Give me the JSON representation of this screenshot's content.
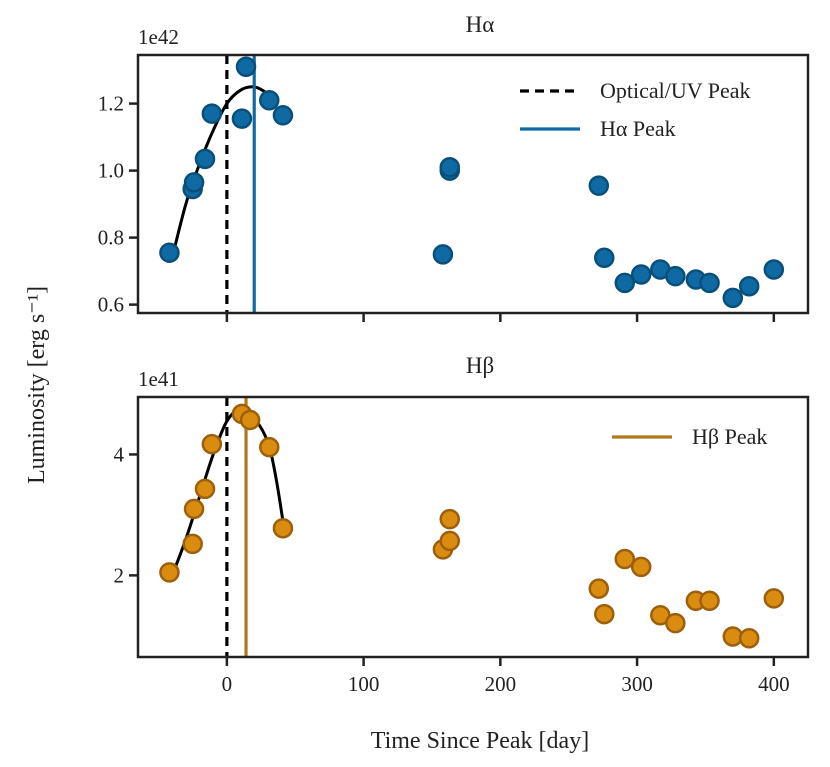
{
  "chart_data": [
    {
      "type": "scatter",
      "title": "Hα",
      "offset_text": "1e42",
      "xlabel": "Time Since Peak [day]",
      "ylabel": "Luminosity [erg s⁻¹]",
      "xlim": [
        -65,
        425
      ],
      "ylim": [
        0.575,
        1.345
      ],
      "yticks": [
        0.6,
        0.8,
        1.0,
        1.2
      ],
      "ytick_labels": [
        "0.6",
        "0.8",
        "1.0",
        "1.2"
      ],
      "xticks": [
        0,
        100,
        200,
        300,
        400
      ],
      "show_xtick_labels": false,
      "color": "#0f6aa3",
      "edge_color": "#0a4f7a",
      "points": {
        "x": [
          -42,
          -25,
          -24,
          -16,
          -11,
          11,
          14,
          31,
          41,
          158,
          163,
          163,
          272,
          276,
          291,
          303,
          317,
          328,
          343,
          353,
          370,
          382,
          400
        ],
        "y": [
          0.755,
          0.945,
          0.965,
          1.035,
          1.17,
          1.155,
          1.31,
          1.21,
          1.165,
          0.75,
          1.0,
          1.01,
          0.955,
          0.74,
          0.665,
          0.69,
          0.705,
          0.685,
          0.675,
          0.665,
          0.62,
          0.655,
          0.705
        ]
      },
      "fit": {
        "x": [
          -40,
          -30,
          -20,
          -10,
          0,
          10,
          20,
          28
        ],
        "y": [
          0.74,
          0.9,
          1.02,
          1.12,
          1.2,
          1.24,
          1.25,
          1.235
        ]
      },
      "vlines": [
        {
          "x": 0,
          "style": "dashed",
          "color": "#000000",
          "label": "Optical/UV Peak"
        },
        {
          "x": 20,
          "style": "solid",
          "color": "#0f6aa3",
          "label": "Hα Peak"
        }
      ],
      "legend": {
        "placement": "top-right",
        "entries": [
          "Optical/UV Peak",
          "Hα Peak"
        ]
      }
    },
    {
      "type": "scatter",
      "title": "Hβ",
      "offset_text": "1e41",
      "xlabel": "Time Since Peak [day]",
      "ylim": [
        0.65,
        4.95
      ],
      "yticks": [
        2,
        4
      ],
      "ytick_labels": [
        "2",
        "4"
      ],
      "xticks": [
        0,
        100,
        200,
        300,
        400
      ],
      "xtick_labels": [
        "0",
        "100",
        "200",
        "300",
        "400"
      ],
      "color": "#d98c0f",
      "edge_color": "#9c600b",
      "points": {
        "x": [
          -42,
          -25,
          -24,
          -16,
          -11,
          11,
          17,
          31,
          41,
          158,
          163,
          163,
          272,
          276,
          291,
          303,
          317,
          328,
          343,
          353,
          370,
          382,
          400
        ],
        "y": [
          2.05,
          2.52,
          3.1,
          3.43,
          4.17,
          4.67,
          4.57,
          4.12,
          2.78,
          2.43,
          2.93,
          2.57,
          1.78,
          1.36,
          2.27,
          2.14,
          1.34,
          1.21,
          1.58,
          1.58,
          0.99,
          0.96,
          1.62
        ]
      },
      "fit": {
        "x": [
          -40,
          -30,
          -20,
          -10,
          0,
          10,
          20,
          30,
          36,
          42
        ],
        "y": [
          2.0,
          2.6,
          3.3,
          4.0,
          4.55,
          4.75,
          4.6,
          4.2,
          3.6,
          2.75
        ]
      },
      "vlines": [
        {
          "x": 0,
          "style": "dashed",
          "color": "#000000",
          "label": ""
        },
        {
          "x": 14,
          "style": "solid",
          "color": "#b07a1a",
          "label": "Hβ Peak"
        }
      ],
      "legend": {
        "placement": "top-right",
        "entries": [
          "Hβ Peak"
        ]
      }
    }
  ]
}
